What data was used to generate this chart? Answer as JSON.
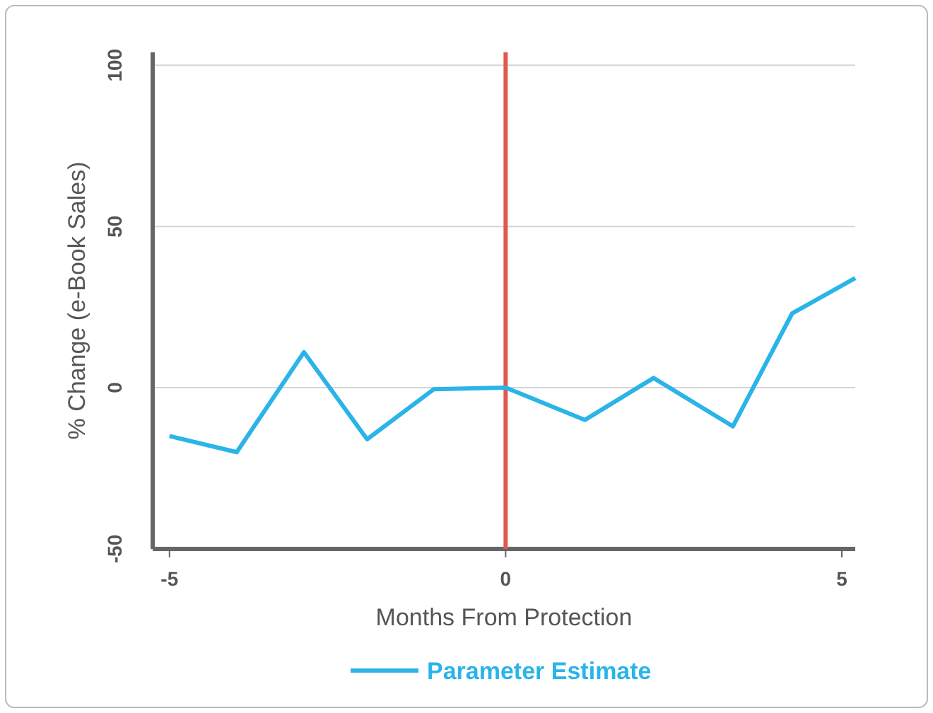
{
  "chart_data": {
    "type": "line",
    "xlabel": "Months From Protection",
    "ylabel": "% Change (e-Book Sales)",
    "x": [
      -5,
      -4,
      -3,
      -2.06,
      -1.07,
      0,
      1.18,
      2.2,
      3.38,
      4.26,
      5.2
    ],
    "series": [
      {
        "name": "Parameter Estimate",
        "color": "#2ab4e8",
        "values": [
          -15,
          -20,
          11,
          -16,
          -0.5,
          0,
          -10,
          3,
          -12,
          23,
          34
        ]
      }
    ],
    "xlim": [
      -5.25,
      5.2
    ],
    "xticks": [
      -5,
      0,
      5
    ],
    "ylim": [
      -50,
      104
    ],
    "yticks": [
      -50,
      0,
      50,
      100
    ],
    "grid": "y",
    "legend": "bottom",
    "marker": "none",
    "line_style": "solid",
    "ref_lines": [
      {
        "axis": "x",
        "value": 0,
        "color": "#e0584f"
      }
    ]
  }
}
